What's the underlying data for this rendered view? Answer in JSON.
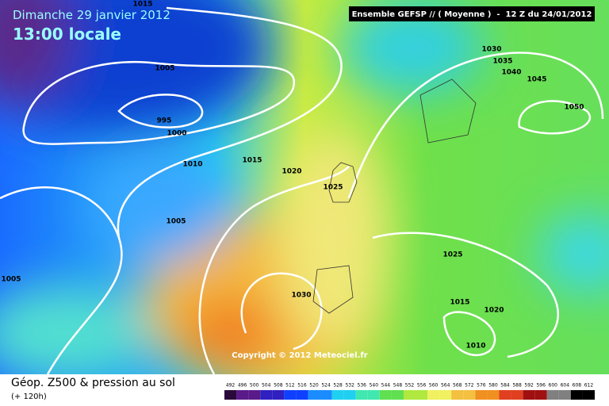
{
  "header": {
    "date": "Dimanche 29 janvier 2012",
    "time": "13:00 locale",
    "model": "Ensemble GEFSP // ( Moyenne )  -  12 Z du 24/01/2012"
  },
  "isobar_labels": [
    "1015",
    "1005",
    "995",
    "1000",
    "1010",
    "1015",
    "1020",
    "1025",
    "1005",
    "1005",
    "1030",
    "1025",
    "1015",
    "1020",
    "1010",
    "1030",
    "1035",
    "1040",
    "1045",
    "1050"
  ],
  "copyright": "Copyright © 2012 Meteociel.fr",
  "footer": {
    "title": "Géop. Z500 & pression au sol",
    "subtitle": "(+ 120h)"
  },
  "legend": {
    "values": [
      492,
      496,
      500,
      504,
      508,
      512,
      516,
      520,
      524,
      528,
      532,
      536,
      540,
      544,
      548,
      552,
      556,
      560,
      564,
      568,
      572,
      576,
      580,
      584,
      588,
      592,
      596,
      600,
      604,
      608,
      612
    ]
  }
}
